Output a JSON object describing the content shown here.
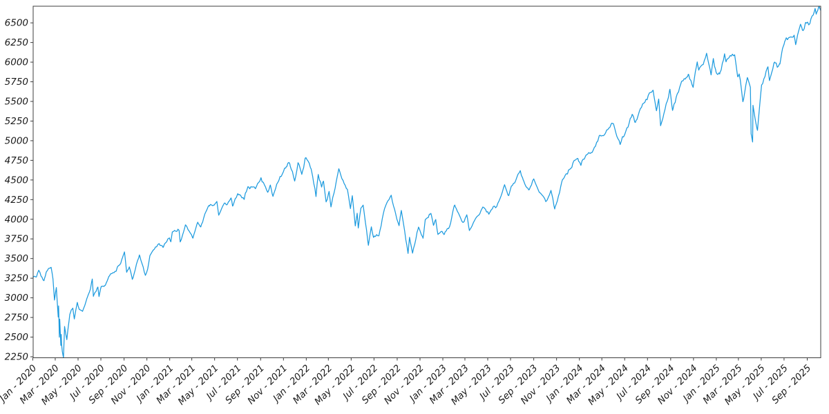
{
  "figure": {
    "background": "#ffffff"
  },
  "chart_data": {
    "type": "line",
    "title": "",
    "xlabel": "",
    "ylabel": "",
    "grid": false,
    "legend": "none",
    "line_color": "#1c9ade",
    "axis_color": "#3c3c3c",
    "tick_label_color": "#1a1a1a",
    "xlim": [
      "2020-01-02",
      "2025-10-07"
    ],
    "ylim": [
      2237,
      6712
    ],
    "y_ticks": [
      2250,
      2500,
      2750,
      3000,
      3250,
      3500,
      3750,
      4000,
      4250,
      4500,
      4750,
      5000,
      5250,
      5500,
      5750,
      6000,
      6250,
      6500
    ],
    "x_ticks": [
      {
        "date": "2020-01-01",
        "label": "Jan - 2020"
      },
      {
        "date": "2020-03-01",
        "label": "Mar - 2020"
      },
      {
        "date": "2020-05-01",
        "label": "May - 2020"
      },
      {
        "date": "2020-07-01",
        "label": "Jul - 2020"
      },
      {
        "date": "2020-09-01",
        "label": "Sep - 2020"
      },
      {
        "date": "2020-11-01",
        "label": "Nov - 2020"
      },
      {
        "date": "2021-01-01",
        "label": "Jan - 2021"
      },
      {
        "date": "2021-03-01",
        "label": "Mar - 2021"
      },
      {
        "date": "2021-05-01",
        "label": "May - 2021"
      },
      {
        "date": "2021-07-01",
        "label": "Jul - 2021"
      },
      {
        "date": "2021-09-01",
        "label": "Sep - 2021"
      },
      {
        "date": "2021-11-01",
        "label": "Nov - 2021"
      },
      {
        "date": "2022-01-01",
        "label": "Jan - 2022"
      },
      {
        "date": "2022-03-01",
        "label": "Mar - 2022"
      },
      {
        "date": "2022-05-01",
        "label": "May - 2022"
      },
      {
        "date": "2022-07-01",
        "label": "Jul - 2022"
      },
      {
        "date": "2022-09-01",
        "label": "Sep - 2022"
      },
      {
        "date": "2022-11-01",
        "label": "Nov - 2022"
      },
      {
        "date": "2023-01-01",
        "label": "Jan - 2023"
      },
      {
        "date": "2023-03-01",
        "label": "Mar - 2023"
      },
      {
        "date": "2023-05-01",
        "label": "May - 2023"
      },
      {
        "date": "2023-07-01",
        "label": "Jul - 2023"
      },
      {
        "date": "2023-09-01",
        "label": "Sep - 2023"
      },
      {
        "date": "2023-11-01",
        "label": "Nov - 2023"
      },
      {
        "date": "2024-01-01",
        "label": "Jan - 2024"
      },
      {
        "date": "2024-03-01",
        "label": "Mar - 2024"
      },
      {
        "date": "2024-05-01",
        "label": "May - 2024"
      },
      {
        "date": "2024-07-01",
        "label": "Jul - 2024"
      },
      {
        "date": "2024-09-01",
        "label": "Sep - 2024"
      },
      {
        "date": "2024-11-01",
        "label": "Nov - 2024"
      },
      {
        "date": "2025-01-01",
        "label": "Jan - 2025"
      },
      {
        "date": "2025-03-01",
        "label": "Mar - 2025"
      },
      {
        "date": "2025-05-01",
        "label": "May - 2025"
      },
      {
        "date": "2025-07-01",
        "label": "Jul - 2025"
      },
      {
        "date": "2025-09-01",
        "label": "Sep - 2025"
      }
    ],
    "points": [
      [
        "2020-01-02",
        3258
      ],
      [
        "2020-01-10",
        3265
      ],
      [
        "2020-01-17",
        3330
      ],
      [
        "2020-01-27",
        3244
      ],
      [
        "2020-01-31",
        3226
      ],
      [
        "2020-02-06",
        3346
      ],
      [
        "2020-02-12",
        3379
      ],
      [
        "2020-02-19",
        3386
      ],
      [
        "2020-02-24",
        3226
      ],
      [
        "2020-02-28",
        2954
      ],
      [
        "2020-03-04",
        3130
      ],
      [
        "2020-03-09",
        2746
      ],
      [
        "2020-03-10",
        2882
      ],
      [
        "2020-03-12",
        2481
      ],
      [
        "2020-03-13",
        2711
      ],
      [
        "2020-03-16",
        2386
      ],
      [
        "2020-03-17",
        2529
      ],
      [
        "2020-03-18",
        2398
      ],
      [
        "2020-03-20",
        2305
      ],
      [
        "2020-03-23",
        2237
      ],
      [
        "2020-03-26",
        2630
      ],
      [
        "2020-04-01",
        2470
      ],
      [
        "2020-04-09",
        2790
      ],
      [
        "2020-04-17",
        2875
      ],
      [
        "2020-04-21",
        2737
      ],
      [
        "2020-04-29",
        2940
      ],
      [
        "2020-05-04",
        2843
      ],
      [
        "2020-05-13",
        2820
      ],
      [
        "2020-05-26",
        2992
      ],
      [
        "2020-06-03",
        3123
      ],
      [
        "2020-06-08",
        3232
      ],
      [
        "2020-06-11",
        3002
      ],
      [
        "2020-06-23",
        3131
      ],
      [
        "2020-06-26",
        3009
      ],
      [
        "2020-07-02",
        3130
      ],
      [
        "2020-07-13",
        3155
      ],
      [
        "2020-07-22",
        3276
      ],
      [
        "2020-08-11",
        3333
      ],
      [
        "2020-08-28",
        3508
      ],
      [
        "2020-09-02",
        3580
      ],
      [
        "2020-09-08",
        3332
      ],
      [
        "2020-09-15",
        3401
      ],
      [
        "2020-09-23",
        3237
      ],
      [
        "2020-10-12",
        3534
      ],
      [
        "2020-10-28",
        3271
      ],
      [
        "2020-11-03",
        3369
      ],
      [
        "2020-11-09",
        3550
      ],
      [
        "2020-11-24",
        3635
      ],
      [
        "2020-12-04",
        3699
      ],
      [
        "2020-12-14",
        3647
      ],
      [
        "2020-12-31",
        3756
      ],
      [
        "2021-01-04",
        3701
      ],
      [
        "2021-01-08",
        3825
      ],
      [
        "2021-01-26",
        3850
      ],
      [
        "2021-01-29",
        3714
      ],
      [
        "2021-02-12",
        3935
      ],
      [
        "2021-02-25",
        3829
      ],
      [
        "2021-03-04",
        3768
      ],
      [
        "2021-03-17",
        3974
      ],
      [
        "2021-03-25",
        3910
      ],
      [
        "2021-04-16",
        4185
      ],
      [
        "2021-04-30",
        4181
      ],
      [
        "2021-05-07",
        4233
      ],
      [
        "2021-05-12",
        4063
      ],
      [
        "2021-05-27",
        4201
      ],
      [
        "2021-06-03",
        4193
      ],
      [
        "2021-06-14",
        4255
      ],
      [
        "2021-06-18",
        4166
      ],
      [
        "2021-07-02",
        4352
      ],
      [
        "2021-07-19",
        4258
      ],
      [
        "2021-07-29",
        4419
      ],
      [
        "2021-08-18",
        4400
      ],
      [
        "2021-09-02",
        4537
      ],
      [
        "2021-09-20",
        4358
      ],
      [
        "2021-09-27",
        4443
      ],
      [
        "2021-10-04",
        4300
      ],
      [
        "2021-10-26",
        4575
      ],
      [
        "2021-11-08",
        4702
      ],
      [
        "2021-11-18",
        4705
      ],
      [
        "2021-12-01",
        4513
      ],
      [
        "2021-12-10",
        4712
      ],
      [
        "2021-12-20",
        4568
      ],
      [
        "2021-12-29",
        4793
      ],
      [
        "2022-01-03",
        4797
      ],
      [
        "2022-01-14",
        4663
      ],
      [
        "2022-01-27",
        4326
      ],
      [
        "2022-02-02",
        4589
      ],
      [
        "2022-02-11",
        4419
      ],
      [
        "2022-02-16",
        4475
      ],
      [
        "2022-02-23",
        4226
      ],
      [
        "2022-03-03",
        4363
      ],
      [
        "2022-03-08",
        4171
      ],
      [
        "2022-03-29",
        4631
      ],
      [
        "2022-04-08",
        4488
      ],
      [
        "2022-04-21",
        4393
      ],
      [
        "2022-04-29",
        4132
      ],
      [
        "2022-05-04",
        4300
      ],
      [
        "2022-05-12",
        3930
      ],
      [
        "2022-05-17",
        4089
      ],
      [
        "2022-05-20",
        3901
      ],
      [
        "2022-05-27",
        4158
      ],
      [
        "2022-06-02",
        4177
      ],
      [
        "2022-06-16",
        3667
      ],
      [
        "2022-06-24",
        3912
      ],
      [
        "2022-06-30",
        3785
      ],
      [
        "2022-07-14",
        3790
      ],
      [
        "2022-07-29",
        4130
      ],
      [
        "2022-08-16",
        4305
      ],
      [
        "2022-09-06",
        3908
      ],
      [
        "2022-09-12",
        4110
      ],
      [
        "2022-09-30",
        3586
      ],
      [
        "2022-10-04",
        3791
      ],
      [
        "2022-10-12",
        3577
      ],
      [
        "2022-10-28",
        3901
      ],
      [
        "2022-11-09",
        3748
      ],
      [
        "2022-11-15",
        3992
      ],
      [
        "2022-11-30",
        4080
      ],
      [
        "2022-12-07",
        3934
      ],
      [
        "2022-12-13",
        4020
      ],
      [
        "2022-12-19",
        3817
      ],
      [
        "2022-12-30",
        3839
      ],
      [
        "2023-01-05",
        3808
      ],
      [
        "2023-01-19",
        3899
      ],
      [
        "2023-01-26",
        4060
      ],
      [
        "2023-02-02",
        4180
      ],
      [
        "2023-02-24",
        3970
      ],
      [
        "2023-03-06",
        4048
      ],
      [
        "2023-03-13",
        3856
      ],
      [
        "2023-03-24",
        3971
      ],
      [
        "2023-04-18",
        4155
      ],
      [
        "2023-05-04",
        4061
      ],
      [
        "2023-05-19",
        4192
      ],
      [
        "2023-05-25",
        4151
      ],
      [
        "2023-06-15",
        4426
      ],
      [
        "2023-06-26",
        4329
      ],
      [
        "2023-07-27",
        4607
      ],
      [
        "2023-08-04",
        4478
      ],
      [
        "2023-08-18",
        4370
      ],
      [
        "2023-09-01",
        4516
      ],
      [
        "2023-09-27",
        4274
      ],
      [
        "2023-10-03",
        4229
      ],
      [
        "2023-10-17",
        4373
      ],
      [
        "2023-10-27",
        4117
      ],
      [
        "2023-11-17",
        4514
      ],
      [
        "2023-12-01",
        4595
      ],
      [
        "2023-12-14",
        4720
      ],
      [
        "2023-12-28",
        4783
      ],
      [
        "2024-01-05",
        4697
      ],
      [
        "2024-01-19",
        4840
      ],
      [
        "2024-01-31",
        4846
      ],
      [
        "2024-02-13",
        4953
      ],
      [
        "2024-02-23",
        5089
      ],
      [
        "2024-03-05",
        5078
      ],
      [
        "2024-03-28",
        5254
      ],
      [
        "2024-04-01",
        5244
      ],
      [
        "2024-04-19",
        4967
      ],
      [
        "2024-05-03",
        5128
      ],
      [
        "2024-05-21",
        5321
      ],
      [
        "2024-05-30",
        5235
      ],
      [
        "2024-06-18",
        5487
      ],
      [
        "2024-07-16",
        5667
      ],
      [
        "2024-07-25",
        5399
      ],
      [
        "2024-07-31",
        5522
      ],
      [
        "2024-08-05",
        5186
      ],
      [
        "2024-08-30",
        5648
      ],
      [
        "2024-09-06",
        5408
      ],
      [
        "2024-09-30",
        5762
      ],
      [
        "2024-10-18",
        5865
      ],
      [
        "2024-10-31",
        5705
      ],
      [
        "2024-11-11",
        6001
      ],
      [
        "2024-11-15",
        5871
      ],
      [
        "2024-12-06",
        6090
      ],
      [
        "2024-12-18",
        5872
      ],
      [
        "2024-12-24",
        6040
      ],
      [
        "2024-12-31",
        5882
      ],
      [
        "2025-01-10",
        5827
      ],
      [
        "2025-01-23",
        6119
      ],
      [
        "2025-01-27",
        6012
      ],
      [
        "2025-02-19",
        6144
      ],
      [
        "2025-02-27",
        5862
      ],
      [
        "2025-03-03",
        5850
      ],
      [
        "2025-03-13",
        5521
      ],
      [
        "2025-03-25",
        5777
      ],
      [
        "2025-04-02",
        5671
      ],
      [
        "2025-04-04",
        5074
      ],
      [
        "2025-04-08",
        4983
      ],
      [
        "2025-04-09",
        5457
      ],
      [
        "2025-04-16",
        5276
      ],
      [
        "2025-04-21",
        5158
      ],
      [
        "2025-05-02",
        5687
      ],
      [
        "2025-05-12",
        5844
      ],
      [
        "2025-05-19",
        5963
      ],
      [
        "2025-05-23",
        5803
      ],
      [
        "2025-06-06",
        6000
      ],
      [
        "2025-06-20",
        5968
      ],
      [
        "2025-06-27",
        6173
      ],
      [
        "2025-07-03",
        6279
      ],
      [
        "2025-07-28",
        6390
      ],
      [
        "2025-08-01",
        6238
      ],
      [
        "2025-08-14",
        6469
      ],
      [
        "2025-08-19",
        6411
      ],
      [
        "2025-08-28",
        6502
      ],
      [
        "2025-09-05",
        6482
      ],
      [
        "2025-09-22",
        6693
      ],
      [
        "2025-09-25",
        6605
      ],
      [
        "2025-10-03",
        6712
      ],
      [
        "2025-10-07",
        6688
      ]
    ],
    "render_hints": {
      "noise_seed": 7,
      "noise_components": [
        {
          "period_days": 3,
          "amplitude_pct": 0.0035
        },
        {
          "period_days": 9,
          "amplitude_pct": 0.005
        }
      ]
    }
  }
}
